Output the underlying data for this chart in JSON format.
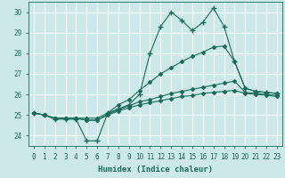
{
  "x": [
    0,
    1,
    2,
    3,
    4,
    5,
    6,
    7,
    8,
    9,
    10,
    11,
    12,
    13,
    14,
    15,
    16,
    17,
    18,
    19,
    20,
    21,
    22,
    23
  ],
  "line1": [
    25.1,
    25.0,
    24.8,
    24.8,
    24.8,
    23.75,
    23.75,
    25.1,
    25.3,
    25.5,
    26.0,
    28.0,
    29.3,
    30.0,
    29.6,
    29.1,
    29.5,
    30.2,
    29.3,
    27.6,
    26.3,
    26.15,
    26.1,
    26.05
  ],
  "line2": [
    25.1,
    25.0,
    24.85,
    24.85,
    24.85,
    24.85,
    24.85,
    25.1,
    25.5,
    25.75,
    26.2,
    26.6,
    27.0,
    27.3,
    27.6,
    27.85,
    28.05,
    28.3,
    28.35,
    27.6,
    26.3,
    26.15,
    26.1,
    26.05
  ],
  "line3": [
    25.1,
    25.0,
    24.85,
    24.85,
    24.85,
    24.75,
    24.75,
    25.05,
    25.25,
    25.45,
    25.65,
    25.75,
    25.9,
    26.05,
    26.15,
    26.25,
    26.35,
    26.45,
    26.55,
    26.65,
    26.1,
    26.05,
    26.0,
    25.95
  ],
  "line4": [
    25.1,
    25.0,
    24.85,
    24.85,
    24.85,
    24.75,
    24.75,
    25.0,
    25.2,
    25.35,
    25.5,
    25.6,
    25.7,
    25.8,
    25.9,
    25.95,
    26.05,
    26.1,
    26.15,
    26.2,
    26.05,
    26.0,
    25.97,
    25.9
  ],
  "color": "#1a6b5a",
  "bg_color": "#cce8e8",
  "grid_color": "#b0d8d8",
  "xlabel": "Humidex (Indice chaleur)",
  "ylim": [
    23.5,
    30.5
  ],
  "xlim": [
    -0.5,
    23.5
  ],
  "yticks": [
    24,
    25,
    26,
    27,
    28,
    29,
    30
  ],
  "xticks": [
    0,
    1,
    2,
    3,
    4,
    5,
    6,
    7,
    8,
    9,
    10,
    11,
    12,
    13,
    14,
    15,
    16,
    17,
    18,
    19,
    20,
    21,
    22,
    23
  ],
  "markersize": 3,
  "linewidth": 0.8
}
